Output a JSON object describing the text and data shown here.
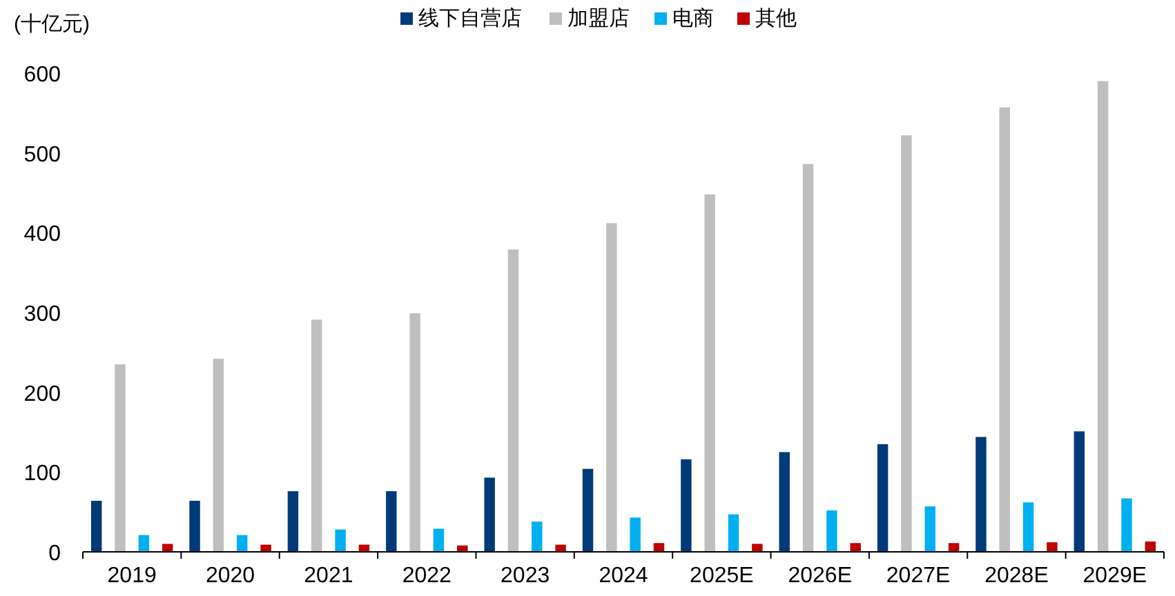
{
  "chart_data": {
    "type": "bar",
    "ylabel": "(十亿元)",
    "categories": [
      "2019",
      "2020",
      "2021",
      "2022",
      "2023",
      "2024",
      "2025E",
      "2026E",
      "2027E",
      "2028E",
      "2029E"
    ],
    "series": [
      {
        "name": "线下自营店",
        "color": "#003a78",
        "values": [
          64,
          64,
          76,
          76,
          93,
          104,
          116,
          125,
          135,
          144,
          151
        ]
      },
      {
        "name": "加盟店",
        "color": "#bfbfbf",
        "values": [
          235,
          242,
          291,
          299,
          379,
          412,
          448,
          486,
          522,
          557,
          590
        ]
      },
      {
        "name": "电商",
        "color": "#00b0f0",
        "values": [
          21,
          21,
          28,
          29,
          38,
          43,
          47,
          52,
          57,
          62,
          67
        ]
      },
      {
        "name": "其他",
        "color": "#c00000",
        "values": [
          10,
          9,
          9,
          8,
          9,
          11,
          10,
          11,
          11,
          12,
          13
        ]
      }
    ],
    "ylim": [
      0,
      600
    ],
    "yticks": [
      0,
      100,
      200,
      300,
      400,
      500,
      600
    ],
    "grid": false,
    "legend": "top"
  }
}
